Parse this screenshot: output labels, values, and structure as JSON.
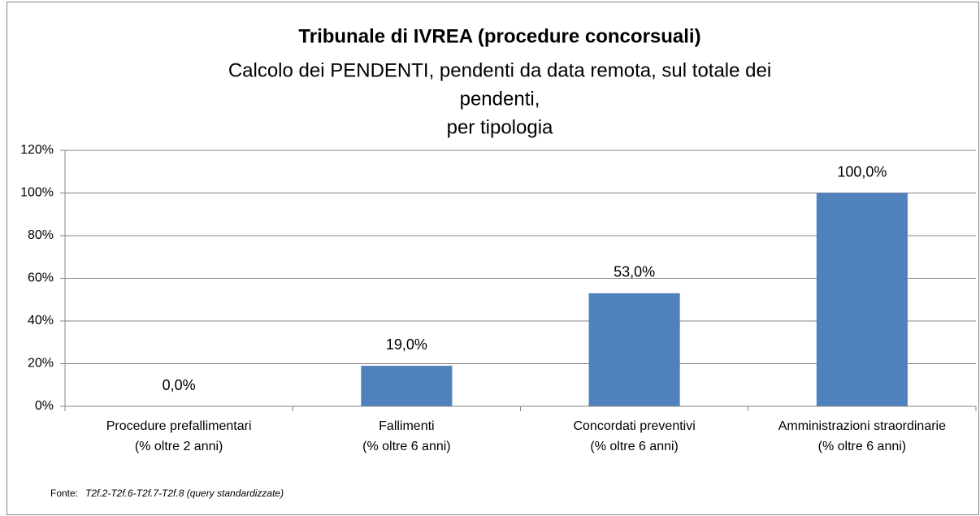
{
  "chart_data": {
    "type": "bar",
    "title": "Tribunale di IVREA (procedure concorsuali)",
    "subtitle": [
      "Calcolo dei PENDENTI, pendenti da data remota, sul totale dei",
      "pendenti,",
      "per tipologia"
    ],
    "categories": [
      "Procedure prefallimentari\n(% oltre 2 anni)",
      "Fallimenti\n(% oltre 6 anni)",
      "Concordati preventivi\n(% oltre 6 anni)",
      "Amministrazioni straordinarie\n(% oltre 6 anni)"
    ],
    "values": [
      0,
      19,
      53,
      100
    ],
    "value_labels": [
      "0,0%",
      "19,0%",
      "53,0%",
      "100,0%"
    ],
    "color": "#4f81bd",
    "ylim": [
      0,
      120
    ],
    "yticks": [
      {
        "value": 0,
        "label": "0%"
      },
      {
        "value": 20,
        "label": "20%"
      },
      {
        "value": 40,
        "label": "40%"
      },
      {
        "value": 60,
        "label": "60%"
      },
      {
        "value": 80,
        "label": "80%"
      },
      {
        "value": 100,
        "label": "100%"
      },
      {
        "value": 120,
        "label": "120%"
      }
    ],
    "grid": true,
    "source_label": "Fonte:",
    "source": "T2f.2-T2f.6-T2f.7-T2f.8 (query standardizzate)"
  }
}
